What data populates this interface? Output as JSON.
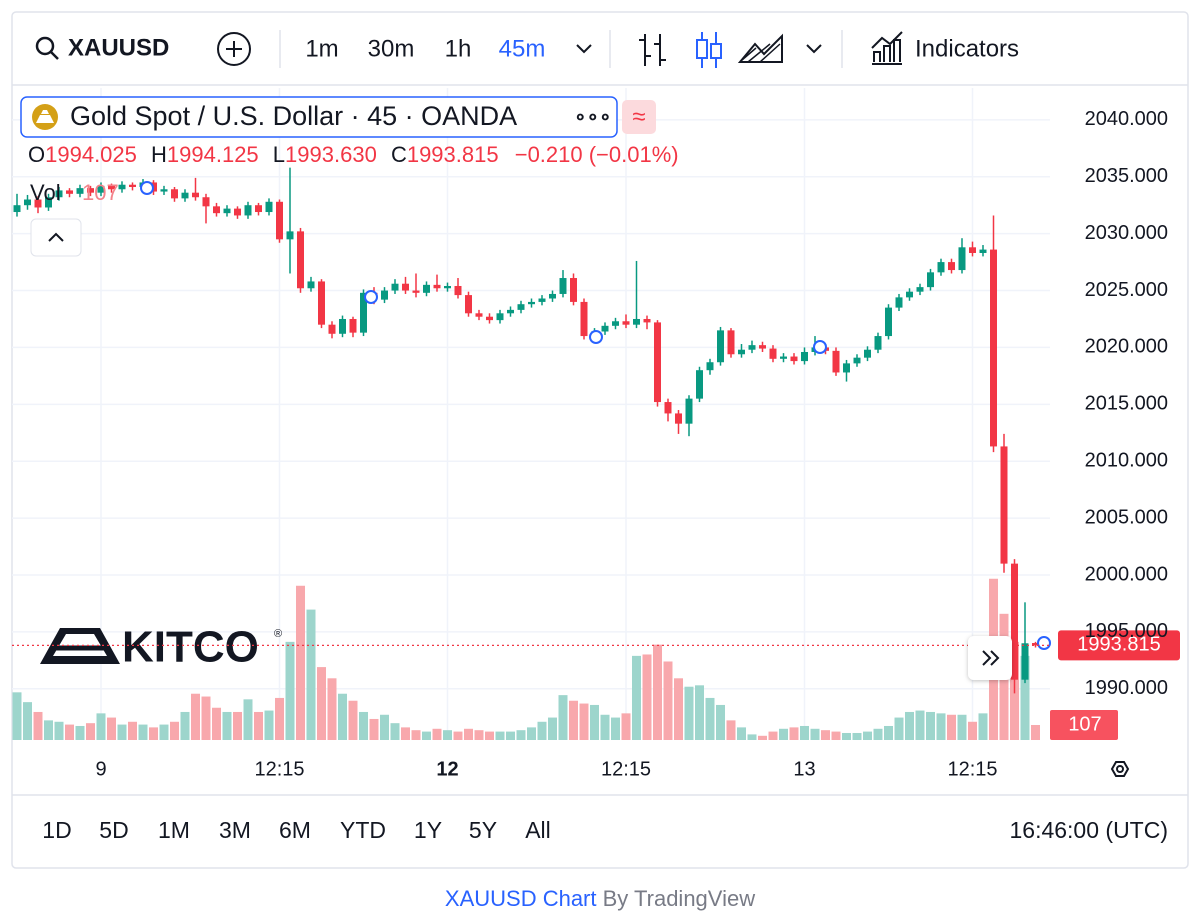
{
  "toolbar": {
    "symbol": "XAUUSD",
    "intervals": [
      "1m",
      "30m",
      "1h",
      "45m"
    ],
    "indicators": "Indicators"
  },
  "legend": {
    "title": "Gold Spot / U.S. Dollar · 45 · OANDA",
    "badge": "≈",
    "readout": [
      [
        "O",
        "1994.025"
      ],
      [
        "H",
        "1994.125"
      ],
      [
        "L",
        "1993.630"
      ],
      [
        "C",
        "1993.815"
      ]
    ],
    "change": "−0.210 (−0.01%)",
    "volume_label": "Vol"
  },
  "watermark": {
    "text": "KITCO",
    "mark": "®"
  },
  "chart_data": {
    "type": "candlestick",
    "categories": [
      null,
      null,
      null,
      null,
      null,
      null,
      null,
      null,
      "9",
      null,
      null,
      null,
      null,
      null,
      null,
      null,
      null,
      null,
      null,
      null,
      null,
      null,
      null,
      null,
      null,
      "12:15",
      null,
      null,
      null,
      null,
      null,
      null,
      null,
      null,
      null,
      null,
      null,
      null,
      null,
      null,
      null,
      "12",
      null,
      null,
      null,
      null,
      null,
      null,
      null,
      null,
      null,
      null,
      null,
      null,
      null,
      null,
      null,
      null,
      "12:15",
      null,
      null,
      null,
      null,
      null,
      null,
      null,
      null,
      null,
      null,
      null,
      null,
      null,
      null,
      null,
      null,
      "13",
      null,
      null,
      null,
      null,
      null,
      null,
      null,
      null,
      null,
      null,
      null,
      null,
      null,
      null,
      null,
      "12:15",
      null,
      null,
      null,
      null,
      null,
      null
    ],
    "open": [
      2031.9,
      2032.5,
      2033.0,
      2032.3,
      2033.2,
      2033.8,
      2033.5,
      2034.0,
      2033.6,
      2034.2,
      2033.9,
      2034.3,
      2034.1,
      2034.5,
      2033.7,
      2033.9,
      2033.1,
      2033.6,
      2033.2,
      2032.4,
      2031.8,
      2032.2,
      2031.6,
      2032.5,
      2031.9,
      2032.8,
      2029.5,
      2030.2,
      2025.2,
      2025.8,
      2022.0,
      2021.2,
      2022.5,
      2021.3,
      2024.8,
      2024.2,
      2025.0,
      2025.6,
      2025.0,
      2024.8,
      2025.5,
      2025.2,
      2025.4,
      2024.6,
      2023.0,
      2022.7,
      2022.4,
      2023.0,
      2023.3,
      2023.8,
      2024.0,
      2024.3,
      2024.7,
      2026.1,
      2024.0,
      2021.0,
      2021.4,
      2021.9,
      2022.3,
      2022.0,
      2022.5,
      2022.2,
      2015.2,
      2014.2,
      2013.3,
      2015.5,
      2018.0,
      2018.7,
      2021.5,
      2019.4,
      2019.8,
      2020.2,
      2019.9,
      2019.0,
      2019.2,
      2018.8,
      2019.6,
      2020.0,
      2019.7,
      2017.8,
      2018.6,
      2019.1,
      2019.8,
      2021.0,
      2023.5,
      2024.4,
      2024.9,
      2025.3,
      2026.6,
      2027.5,
      2026.8,
      2028.8,
      2028.3,
      2028.6,
      2011.3,
      2001.0,
      1990.8,
      1994.025
    ],
    "high": [
      2033.5,
      2033.4,
      2033.3,
      2033.5,
      2034.1,
      2034.0,
      2034.3,
      2034.2,
      2034.5,
      2034.4,
      2034.6,
      2034.5,
      2034.8,
      2034.7,
      2034.2,
      2034.1,
      2033.9,
      2034.9,
      2033.5,
      2032.7,
      2032.5,
      2032.4,
      2032.8,
      2032.7,
      2033.1,
      2033.0,
      2035.8,
      2030.5,
      2026.2,
      2026.0,
      2022.3,
      2022.8,
      2022.7,
      2025.1,
      2025.3,
      2025.3,
      2026.0,
      2026.2,
      2026.5,
      2025.8,
      2026.4,
      2025.7,
      2026.1,
      2024.9,
      2023.3,
      2023.0,
      2023.3,
      2023.6,
      2024.1,
      2024.3,
      2024.6,
      2025.0,
      2026.8,
      2026.5,
      2024.3,
      2021.7,
      2022.2,
      2022.6,
      2022.9,
      2027.6,
      2022.8,
      2022.4,
      2015.5,
      2014.5,
      2015.8,
      2018.3,
      2019.0,
      2021.8,
      2021.7,
      2020.3,
      2020.6,
      2020.5,
      2020.2,
      2019.5,
      2019.5,
      2020.0,
      2021.0,
      2020.3,
      2020.0,
      2018.9,
      2019.4,
      2020.1,
      2021.3,
      2023.8,
      2024.7,
      2025.2,
      2025.6,
      2026.9,
      2027.8,
      2027.8,
      2029.6,
      2029.3,
      2029.0,
      2031.6,
      2012.4,
      2001.4,
      1997.6,
      1994.125
    ],
    "low": [
      2031.5,
      2032.1,
      2031.8,
      2032.0,
      2032.9,
      2033.2,
      2033.2,
      2033.3,
      2033.3,
      2033.6,
      2033.6,
      2033.8,
      2033.8,
      2033.4,
      2033.4,
      2032.8,
      2032.8,
      2032.9,
      2030.9,
      2031.5,
      2031.5,
      2031.3,
      2031.3,
      2031.6,
      2031.6,
      2029.2,
      2026.5,
      2024.8,
      2024.9,
      2021.7,
      2020.8,
      2020.9,
      2020.9,
      2021.0,
      2023.8,
      2023.9,
      2024.7,
      2024.7,
      2024.4,
      2024.5,
      2024.9,
      2024.9,
      2024.3,
      2022.7,
      2022.4,
      2022.1,
      2022.1,
      2022.7,
      2023.0,
      2023.5,
      2023.7,
      2024.0,
      2024.4,
      2023.7,
      2020.7,
      2020.7,
      2021.1,
      2021.6,
      2021.7,
      2021.7,
      2021.6,
      2014.8,
      2013.5,
      2012.4,
      2012.2,
      2015.2,
      2017.6,
      2018.4,
      2019.1,
      2019.1,
      2019.5,
      2019.6,
      2018.7,
      2018.7,
      2018.5,
      2018.5,
      2019.3,
      2019.4,
      2017.5,
      2017.0,
      2018.3,
      2018.8,
      2019.5,
      2020.7,
      2023.2,
      2024.1,
      2024.6,
      2025.0,
      2026.3,
      2026.5,
      2026.5,
      2028.0,
      2028.0,
      2010.8,
      2000.2,
      1989.6,
      1990.5,
      1993.63
    ],
    "close": [
      2032.5,
      2033.0,
      2032.3,
      2033.2,
      2033.8,
      2033.5,
      2034.0,
      2033.6,
      2034.2,
      2033.9,
      2034.3,
      2034.1,
      2034.5,
      2033.7,
      2033.9,
      2033.1,
      2033.6,
      2033.2,
      2032.4,
      2031.8,
      2032.2,
      2031.6,
      2032.5,
      2031.9,
      2032.8,
      2029.5,
      2030.2,
      2025.2,
      2025.8,
      2022.0,
      2021.2,
      2022.5,
      2021.3,
      2024.8,
      2024.2,
      2025.0,
      2025.6,
      2025.0,
      2024.8,
      2025.5,
      2025.2,
      2025.4,
      2024.6,
      2023.0,
      2022.7,
      2022.4,
      2023.0,
      2023.3,
      2023.8,
      2024.0,
      2024.3,
      2024.7,
      2026.1,
      2024.0,
      2021.0,
      2021.4,
      2021.9,
      2022.3,
      2022.0,
      2022.5,
      2022.2,
      2015.2,
      2014.2,
      2013.3,
      2015.5,
      2018.0,
      2018.7,
      2021.5,
      2019.4,
      2019.8,
      2020.2,
      2019.9,
      2019.0,
      2019.2,
      2018.8,
      2019.6,
      2020.0,
      2019.7,
      2017.8,
      2018.6,
      2019.1,
      2019.8,
      2021.0,
      2023.5,
      2024.4,
      2024.9,
      2025.3,
      2026.6,
      2027.5,
      2026.8,
      2028.8,
      2028.3,
      2028.6,
      2011.3,
      2001.0,
      1990.8,
      1994.0,
      1993.815
    ],
    "volume": [
      340,
      270,
      200,
      140,
      130,
      110,
      100,
      120,
      190,
      160,
      110,
      130,
      110,
      90,
      110,
      130,
      200,
      330,
      310,
      230,
      200,
      200,
      290,
      200,
      210,
      300,
      700,
      1100,
      930,
      520,
      440,
      330,
      280,
      200,
      150,
      180,
      120,
      90,
      70,
      60,
      80,
      70,
      60,
      80,
      70,
      60,
      60,
      60,
      70,
      90,
      130,
      160,
      320,
      280,
      260,
      250,
      180,
      160,
      190,
      600,
      610,
      680,
      560,
      440,
      380,
      390,
      300,
      250,
      140,
      90,
      40,
      30,
      60,
      80,
      90,
      100,
      80,
      70,
      60,
      50,
      50,
      60,
      80,
      100,
      160,
      200,
      210,
      200,
      190,
      180,
      180,
      130,
      190,
      1150,
      900,
      700,
      600,
      107
    ],
    "ylim": [
      1985.5,
      2042.8
    ],
    "yticks": [
      {
        "value": 1990,
        "label": "1990.000"
      },
      {
        "value": 1995,
        "label": "1995.000"
      },
      {
        "value": 2000,
        "label": "2000.000"
      },
      {
        "value": 2005,
        "label": "2005.000"
      },
      {
        "value": 2010,
        "label": "2010.000"
      },
      {
        "value": 2015,
        "label": "2015.000"
      },
      {
        "value": 2020,
        "label": "2020.000"
      },
      {
        "value": 2025,
        "label": "2025.000"
      },
      {
        "value": 2030,
        "label": "2030.000"
      },
      {
        "value": 2035,
        "label": "2035.000"
      },
      {
        "value": 2040,
        "label": "2040.000"
      }
    ],
    "vlim": [
      0,
      4650
    ],
    "grid": true,
    "up_color": "#089981",
    "down_color": "#f23645",
    "volume_up_color": "#9dd5cc",
    "volume_down_color": "#f8a8ac"
  },
  "ranges": [
    "1D",
    "5D",
    "1M",
    "3M",
    "6M",
    "YTD",
    "1Y",
    "5Y",
    "All"
  ],
  "clock": "16:46:00 (UTC)",
  "footer": {
    "link": "XAUUSD Chart",
    "credit": "By TradingView"
  }
}
